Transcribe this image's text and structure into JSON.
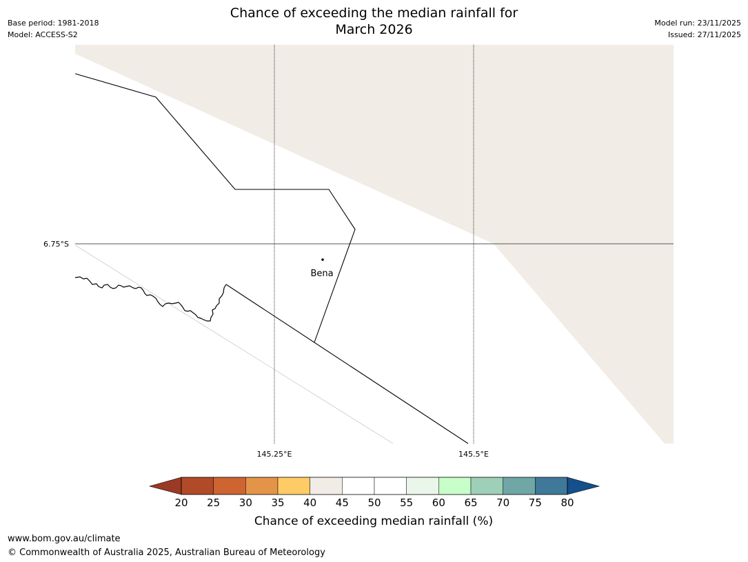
{
  "header": {
    "title_line1": "Chance of exceeding the median rainfall for",
    "title_line2": "March 2026",
    "base_period": "Base period: 1981-2018",
    "model": "Model: ACCESS-S2",
    "model_run": "Model run: 23/11/2025",
    "issued": "Issued: 27/11/2025"
  },
  "map": {
    "latitude_labels": [
      "6.75°S"
    ],
    "longitude_labels": [
      "145.25°E",
      "145.5°E"
    ],
    "places": [
      {
        "name": "Bena"
      }
    ],
    "fill_category": "40-45",
    "fill_color": "#f1ece6"
  },
  "colorbar": {
    "title": "Chance of exceeding median rainfall (%)",
    "ticks": [
      "20",
      "25",
      "30",
      "35",
      "40",
      "45",
      "50",
      "55",
      "60",
      "65",
      "70",
      "75",
      "80"
    ],
    "under_color": "#9b3a24",
    "over_color": "#154f8c",
    "colors": [
      "#b04a28",
      "#cd6432",
      "#e39448",
      "#fecb66",
      "#f2ece6",
      "#ffffff",
      "#ffffff",
      "#eaf6ea",
      "#c8fec8",
      "#9ecfb8",
      "#6fa6a6",
      "#3f7898"
    ]
  },
  "footer": {
    "url": "www.bom.gov.au/climate",
    "copyright": "© Commonwealth of Australia 2025, Australian Bureau of Meteorology"
  }
}
